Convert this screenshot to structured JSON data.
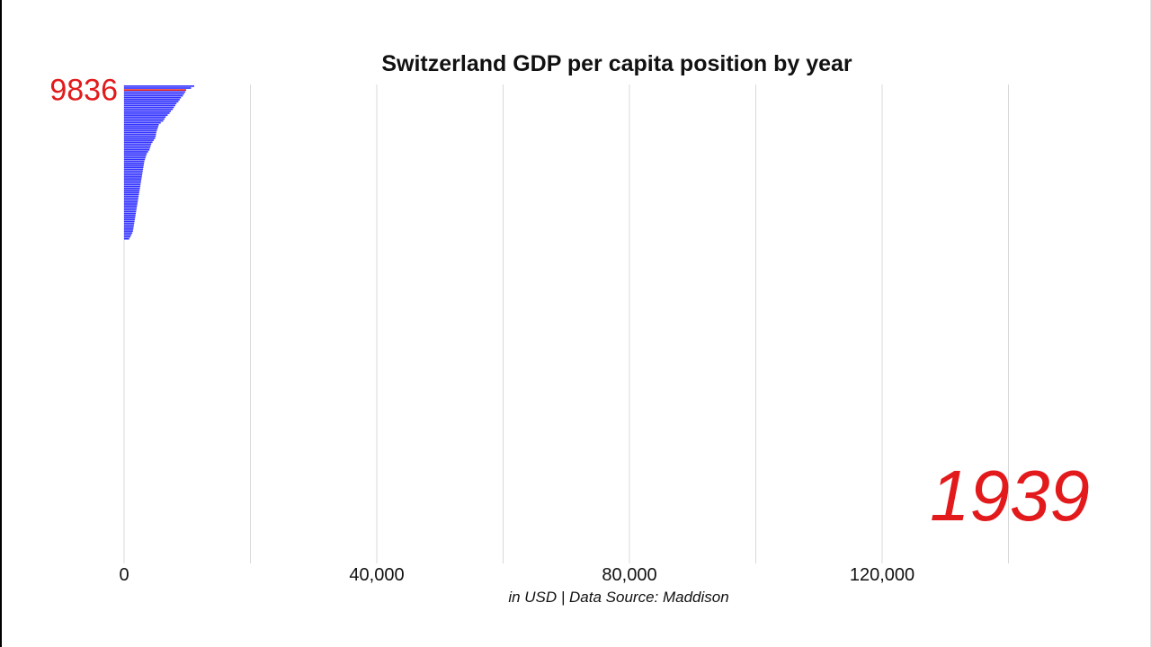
{
  "chart_data": {
    "type": "bar",
    "title": "Switzerland GDP per capita position by year",
    "caption": "in USD | Data Source: Maddison",
    "orientation": "horizontal",
    "sorted": "descending",
    "year": "1939",
    "xlim": [
      0,
      150000
    ],
    "x_ticks": [
      {
        "value": 0,
        "label": "0"
      },
      {
        "value": 40000,
        "label": "40,000"
      },
      {
        "value": 80000,
        "label": "80,000"
      },
      {
        "value": 120000,
        "label": "120,000"
      }
    ],
    "gridlines": [
      0,
      20000,
      40000,
      60000,
      80000,
      100000,
      120000,
      140000
    ],
    "grid": true,
    "highlight": {
      "name": "Switzerland",
      "value": 9836,
      "label": "9836",
      "rank": 3
    },
    "colors": {
      "bars": "#3333ff",
      "highlight": "#e31a1c",
      "grid": "#d9d9d9",
      "text": "#111111"
    },
    "values": [
      11100,
      10600,
      9836,
      9700,
      9500,
      9300,
      9000,
      8800,
      8600,
      8300,
      8100,
      7900,
      7700,
      7400,
      7200,
      6900,
      6600,
      6400,
      6200,
      5800,
      5500,
      5400,
      5300,
      5200,
      5100,
      5050,
      5000,
      4900,
      4700,
      4500,
      4300,
      4200,
      4100,
      4000,
      3800,
      3600,
      3500,
      3400,
      3300,
      3200,
      3150,
      3100,
      3050,
      3000,
      2950,
      2900,
      2850,
      2800,
      2750,
      2700,
      2650,
      2600,
      2550,
      2500,
      2450,
      2400,
      2350,
      2300,
      2250,
      2200,
      2150,
      2100,
      2050,
      2000,
      1950,
      1900,
      1850,
      1800,
      1750,
      1700,
      1650,
      1600,
      1550,
      1500,
      1450,
      1400,
      1300,
      1150,
      1000,
      800
    ]
  }
}
